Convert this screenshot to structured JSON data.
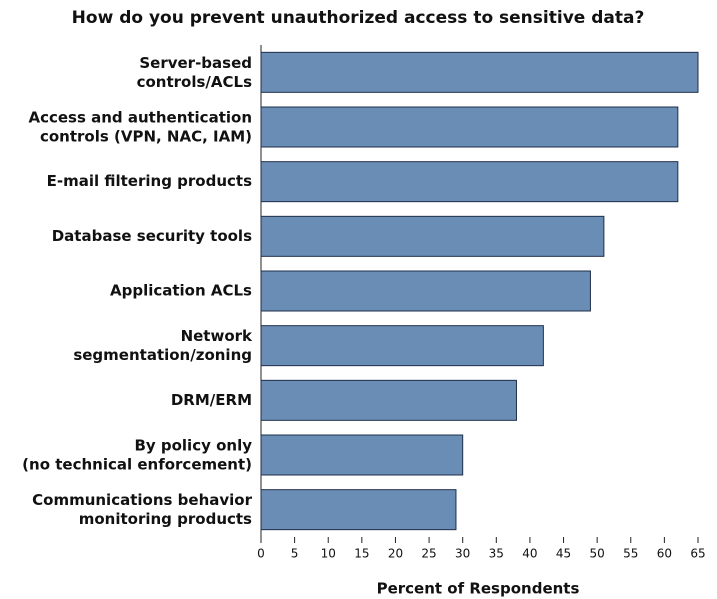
{
  "chart_data": {
    "type": "bar",
    "orientation": "horizontal",
    "title": "How do you prevent unauthorized access to sensitive data?",
    "x_label": "Percent of Respondents",
    "categories": [
      "Server-based\ncontrols/ACLs",
      "Access and authentication\ncontrols (VPN, NAC, IAM)",
      "E-mail filtering products",
      "Database security tools",
      "Application ACLs",
      "Network\nsegmentation/zoning",
      "DRM/ERM",
      "By policy only\n(no technical enforcement)",
      "Communications behavior\nmonitoring products"
    ],
    "values": [
      65,
      62,
      62,
      51,
      49,
      42,
      38,
      30,
      29
    ],
    "color": "#6a8db5",
    "xlim": [
      0,
      65
    ],
    "xticks": [
      0,
      5,
      10,
      15,
      20,
      25,
      30,
      35,
      40,
      45,
      50,
      55,
      60,
      65
    ]
  }
}
